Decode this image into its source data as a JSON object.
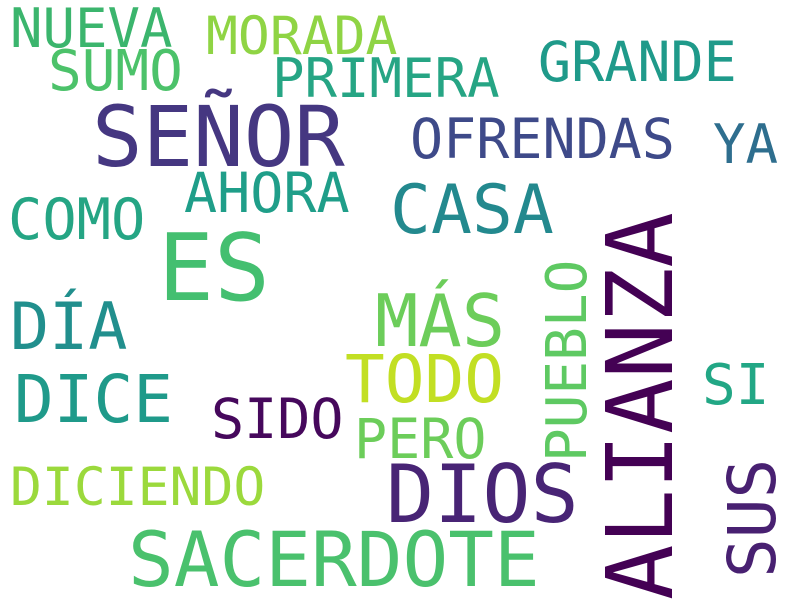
{
  "words": [
    {
      "text": "NUEVA",
      "color": "#3bb56d"
    },
    {
      "text": "MORADA",
      "color": "#8fd444"
    },
    {
      "text": "SUMO",
      "color": "#4cc26a"
    },
    {
      "text": "PRIMERA",
      "color": "#26a584"
    },
    {
      "text": "GRANDE",
      "color": "#1f9a8a"
    },
    {
      "text": "SEÑOR",
      "color": "#453781"
    },
    {
      "text": "OFRENDAS",
      "color": "#3e4a89"
    },
    {
      "text": "YA",
      "color": "#2e6e8e"
    },
    {
      "text": "AHORA",
      "color": "#1f9e89"
    },
    {
      "text": "CASA",
      "color": "#23898e"
    },
    {
      "text": "COMO",
      "color": "#25a584"
    },
    {
      "text": "ES",
      "color": "#44bf70"
    },
    {
      "text": "ALIANZA",
      "color": "#440154"
    },
    {
      "text": "DÍA",
      "color": "#218f8d"
    },
    {
      "text": "MÁS",
      "color": "#6ccd5a"
    },
    {
      "text": "PUEBLO",
      "color": "#5ec962"
    },
    {
      "text": "TODO",
      "color": "#c2df23"
    },
    {
      "text": "DICE",
      "color": "#1f9a8a"
    },
    {
      "text": "SI",
      "color": "#22a785"
    },
    {
      "text": "SIDO",
      "color": "#46085c"
    },
    {
      "text": "PERO",
      "color": "#6ccd5a"
    },
    {
      "text": "DICIENDO",
      "color": "#9bd93c"
    },
    {
      "text": "DIOS",
      "color": "#482475"
    },
    {
      "text": "SUS",
      "color": "#482071"
    },
    {
      "text": "SACERDOTE",
      "color": "#4ac16d"
    }
  ]
}
